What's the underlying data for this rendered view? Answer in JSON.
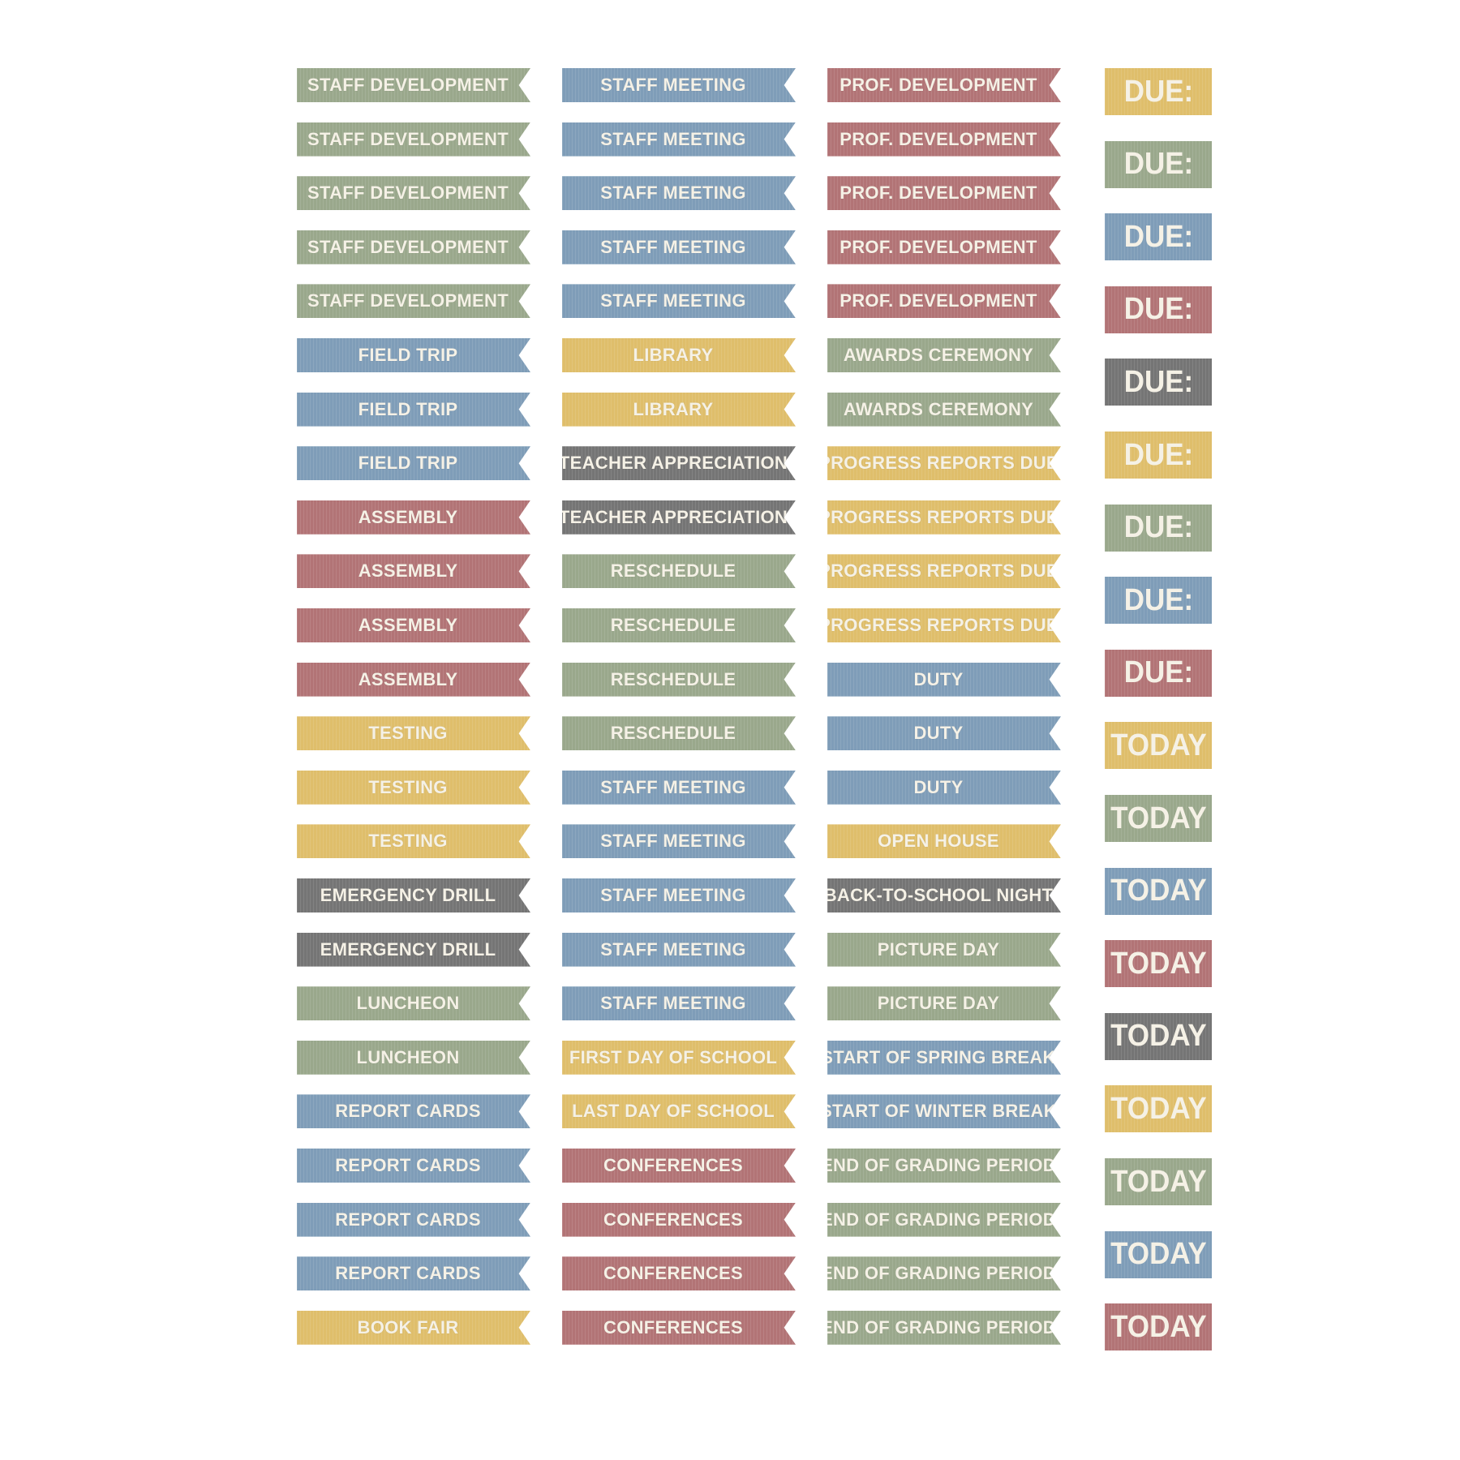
{
  "colors": {
    "green": "#9aa88c",
    "blue": "#7f9db8",
    "rose": "#b27476",
    "gold": "#dfbe6b",
    "gray": "#757575",
    "text": "#f5f1e6"
  },
  "columns": [
    [
      {
        "label": "STAFF DEVELOPMENT",
        "color": "green"
      },
      {
        "label": "STAFF DEVELOPMENT",
        "color": "green"
      },
      {
        "label": "STAFF DEVELOPMENT",
        "color": "green"
      },
      {
        "label": "STAFF DEVELOPMENT",
        "color": "green"
      },
      {
        "label": "STAFF DEVELOPMENT",
        "color": "green"
      },
      {
        "label": "FIELD TRIP",
        "color": "blue"
      },
      {
        "label": "FIELD TRIP",
        "color": "blue"
      },
      {
        "label": "FIELD TRIP",
        "color": "blue"
      },
      {
        "label": "ASSEMBLY",
        "color": "rose"
      },
      {
        "label": "ASSEMBLY",
        "color": "rose"
      },
      {
        "label": "ASSEMBLY",
        "color": "rose"
      },
      {
        "label": "ASSEMBLY",
        "color": "rose"
      },
      {
        "label": "TESTING",
        "color": "gold"
      },
      {
        "label": "TESTING",
        "color": "gold"
      },
      {
        "label": "TESTING",
        "color": "gold"
      },
      {
        "label": "EMERGENCY DRILL",
        "color": "gray"
      },
      {
        "label": "EMERGENCY DRILL",
        "color": "gray"
      },
      {
        "label": "LUNCHEON",
        "color": "green"
      },
      {
        "label": "LUNCHEON",
        "color": "green"
      },
      {
        "label": "REPORT CARDS",
        "color": "blue"
      },
      {
        "label": "REPORT CARDS",
        "color": "blue"
      },
      {
        "label": "REPORT CARDS",
        "color": "blue"
      },
      {
        "label": "REPORT CARDS",
        "color": "blue"
      },
      {
        "label": "BOOK FAIR",
        "color": "gold"
      }
    ],
    [
      {
        "label": "STAFF MEETING",
        "color": "blue"
      },
      {
        "label": "STAFF MEETING",
        "color": "blue"
      },
      {
        "label": "STAFF MEETING",
        "color": "blue"
      },
      {
        "label": "STAFF MEETING",
        "color": "blue"
      },
      {
        "label": "STAFF MEETING",
        "color": "blue"
      },
      {
        "label": "LIBRARY",
        "color": "gold"
      },
      {
        "label": "LIBRARY",
        "color": "gold"
      },
      {
        "label": "TEACHER APPRECIATION",
        "color": "gray"
      },
      {
        "label": "TEACHER APPRECIATION",
        "color": "gray"
      },
      {
        "label": "RESCHEDULE",
        "color": "green"
      },
      {
        "label": "RESCHEDULE",
        "color": "green"
      },
      {
        "label": "RESCHEDULE",
        "color": "green"
      },
      {
        "label": "RESCHEDULE",
        "color": "green"
      },
      {
        "label": "STAFF MEETING",
        "color": "blue"
      },
      {
        "label": "STAFF MEETING",
        "color": "blue"
      },
      {
        "label": "STAFF MEETING",
        "color": "blue"
      },
      {
        "label": "STAFF MEETING",
        "color": "blue"
      },
      {
        "label": "STAFF MEETING",
        "color": "blue"
      },
      {
        "label": "FIRST DAY OF SCHOOL",
        "color": "gold"
      },
      {
        "label": "LAST DAY OF SCHOOL",
        "color": "gold"
      },
      {
        "label": "CONFERENCES",
        "color": "rose"
      },
      {
        "label": "CONFERENCES",
        "color": "rose"
      },
      {
        "label": "CONFERENCES",
        "color": "rose"
      },
      {
        "label": "CONFERENCES",
        "color": "rose"
      }
    ],
    [
      {
        "label": "PROF. DEVELOPMENT",
        "color": "rose"
      },
      {
        "label": "PROF. DEVELOPMENT",
        "color": "rose"
      },
      {
        "label": "PROF. DEVELOPMENT",
        "color": "rose"
      },
      {
        "label": "PROF. DEVELOPMENT",
        "color": "rose"
      },
      {
        "label": "PROF. DEVELOPMENT",
        "color": "rose"
      },
      {
        "label": "AWARDS CEREMONY",
        "color": "green"
      },
      {
        "label": "AWARDS CEREMONY",
        "color": "green"
      },
      {
        "label": "PROGRESS REPORTS DUE",
        "color": "gold"
      },
      {
        "label": "PROGRESS REPORTS DUE",
        "color": "gold"
      },
      {
        "label": "PROGRESS REPORTS DUE",
        "color": "gold"
      },
      {
        "label": "PROGRESS REPORTS DUE",
        "color": "gold"
      },
      {
        "label": "DUTY",
        "color": "blue"
      },
      {
        "label": "DUTY",
        "color": "blue"
      },
      {
        "label": "DUTY",
        "color": "blue"
      },
      {
        "label": "OPEN HOUSE",
        "color": "gold"
      },
      {
        "label": "BACK-TO-SCHOOL NIGHT",
        "color": "gray"
      },
      {
        "label": "PICTURE DAY",
        "color": "green"
      },
      {
        "label": "PICTURE DAY",
        "color": "green"
      },
      {
        "label": "START OF SPRING BREAK",
        "color": "blue"
      },
      {
        "label": "START OF WINTER BREAK",
        "color": "blue"
      },
      {
        "label": "END OF GRADING PERIOD",
        "color": "green"
      },
      {
        "label": "END OF GRADING PERIOD",
        "color": "green"
      },
      {
        "label": "END OF GRADING PERIOD",
        "color": "green"
      },
      {
        "label": "END OF GRADING PERIOD",
        "color": "green"
      }
    ]
  ],
  "tags": [
    {
      "label": "DUE:",
      "color": "gold"
    },
    {
      "label": "DUE:",
      "color": "green"
    },
    {
      "label": "DUE:",
      "color": "blue"
    },
    {
      "label": "DUE:",
      "color": "rose"
    },
    {
      "label": "DUE:",
      "color": "gray"
    },
    {
      "label": "DUE:",
      "color": "gold"
    },
    {
      "label": "DUE:",
      "color": "green"
    },
    {
      "label": "DUE:",
      "color": "blue"
    },
    {
      "label": "DUE:",
      "color": "rose"
    },
    {
      "label": "TODAY",
      "color": "gold"
    },
    {
      "label": "TODAY",
      "color": "green"
    },
    {
      "label": "TODAY",
      "color": "blue"
    },
    {
      "label": "TODAY",
      "color": "rose"
    },
    {
      "label": "TODAY",
      "color": "gray"
    },
    {
      "label": "TODAY",
      "color": "gold"
    },
    {
      "label": "TODAY",
      "color": "green"
    },
    {
      "label": "TODAY",
      "color": "blue"
    },
    {
      "label": "TODAY",
      "color": "rose"
    }
  ]
}
